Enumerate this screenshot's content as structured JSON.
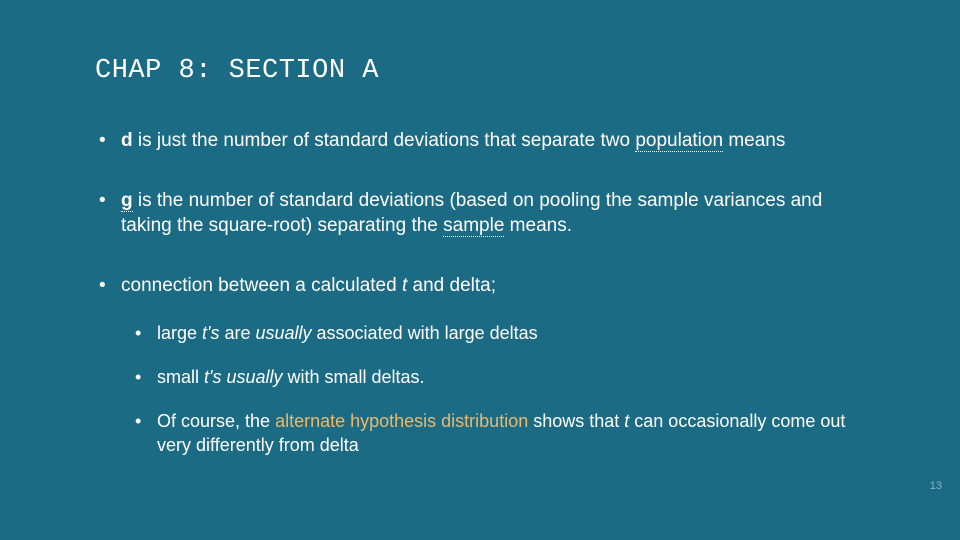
{
  "background_color": "#1c6b85",
  "text_color": "#ffffff",
  "accent_color": "#e9b96e",
  "page_number_color": "#8ab3bf",
  "title_font": "Courier New",
  "body_font": "Verdana",
  "title_fontsize": 27,
  "body_fontsize": 19,
  "sub_fontsize": 18,
  "title": "CHAP 8: SECTION A",
  "b1_d": "d",
  "b1_1": " is just the number of standard deviations that separate two ",
  "b1_pop": "population",
  "b1_2": " means",
  "b2_g": "g",
  "b2_1": " is the number of standard deviations (based on pooling the sample variances and taking the square-root) separating the ",
  "b2_sample": "sample",
  "b2_2": " means.",
  "b3_1": "connection between a calculated ",
  "b3_t": "t",
  "b3_2": " and delta;",
  "s1_1": "large ",
  "s1_ts": "t's",
  "s1_2": " are ",
  "s1_usually": "usually",
  "s1_3": " associated with large deltas",
  "s2_1": "small ",
  "s2_ts": "t's",
  "s2_sp": " ",
  "s2_usually": "usually",
  "s2_2": " with small deltas.",
  "s3_1": "Of course, the ",
  "s3_alt": "alternate hypothesis distribution",
  "s3_2": " shows that ",
  "s3_t": "t",
  "s3_3": " can occasionally come out very differently from delta",
  "page_number": "13"
}
